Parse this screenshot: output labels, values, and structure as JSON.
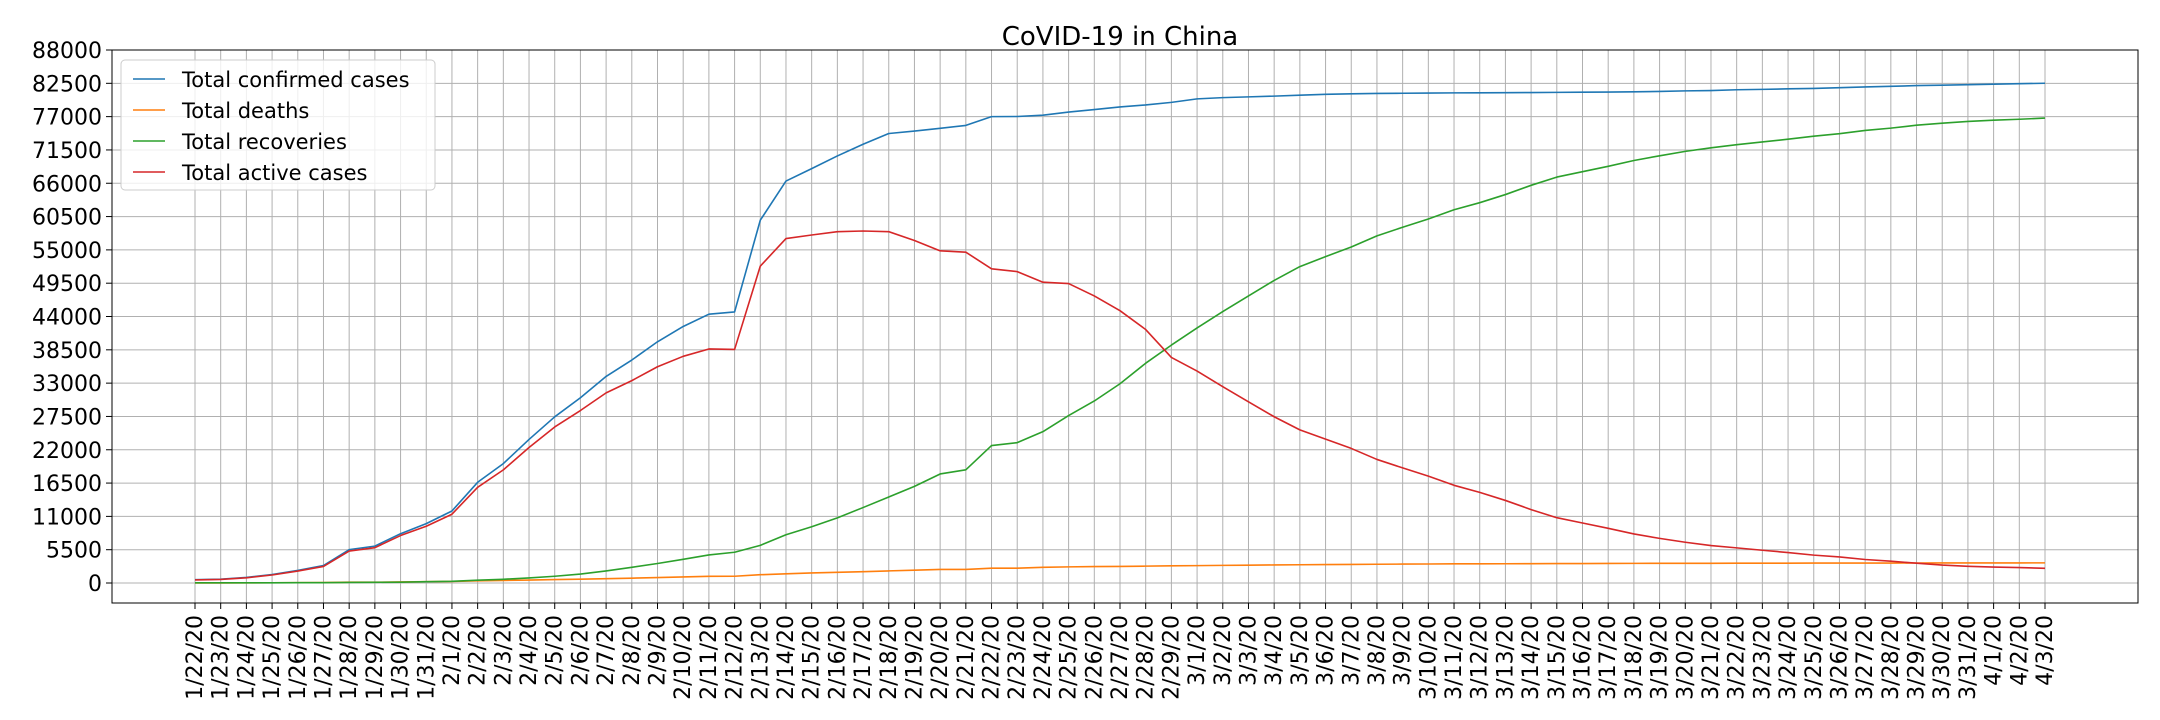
{
  "chart_data": {
    "type": "line",
    "title": "CoVID-19 in China",
    "xlabel": "",
    "ylabel": "",
    "ylim": [
      -3300,
      88000
    ],
    "y_ticks": [
      0,
      5500,
      11000,
      16500,
      22000,
      27500,
      33000,
      38500,
      44000,
      49500,
      55000,
      60500,
      66000,
      71500,
      77000,
      82500,
      88000
    ],
    "grid": true,
    "legend_position": "upper-left",
    "categories": [
      "1/22/20",
      "1/23/20",
      "1/24/20",
      "1/25/20",
      "1/26/20",
      "1/27/20",
      "1/28/20",
      "1/29/20",
      "1/30/20",
      "1/31/20",
      "2/1/20",
      "2/2/20",
      "2/3/20",
      "2/4/20",
      "2/5/20",
      "2/6/20",
      "2/7/20",
      "2/8/20",
      "2/9/20",
      "2/10/20",
      "2/11/20",
      "2/12/20",
      "2/13/20",
      "2/14/20",
      "2/15/20",
      "2/16/20",
      "2/17/20",
      "2/18/20",
      "2/19/20",
      "2/20/20",
      "2/21/20",
      "2/22/20",
      "2/23/20",
      "2/24/20",
      "2/25/20",
      "2/26/20",
      "2/27/20",
      "2/28/20",
      "2/29/20",
      "3/1/20",
      "3/2/20",
      "3/3/20",
      "3/4/20",
      "3/5/20",
      "3/6/20",
      "3/7/20",
      "3/8/20",
      "3/9/20",
      "3/10/20",
      "3/11/20",
      "3/12/20",
      "3/13/20",
      "3/14/20",
      "3/15/20",
      "3/16/20",
      "3/17/20",
      "3/18/20",
      "3/19/20",
      "3/20/20",
      "3/21/20",
      "3/22/20",
      "3/23/20",
      "3/24/20",
      "3/25/20",
      "3/26/20",
      "3/27/20",
      "3/28/20",
      "3/29/20",
      "3/30/20",
      "3/31/20",
      "4/1/20",
      "4/2/20",
      "4/3/20"
    ],
    "series": [
      {
        "name": "Total confirmed cases",
        "color": "#1f77b4",
        "values": [
          548,
          643,
          920,
          1406,
          2075,
          2877,
          5509,
          6087,
          8141,
          9802,
          11891,
          16630,
          19716,
          23707,
          27440,
          30587,
          34110,
          36814,
          39829,
          42354,
          44386,
          44759,
          59895,
          66358,
          68413,
          70513,
          72434,
          74211,
          74619,
          75077,
          75550,
          77001,
          77022,
          77241,
          77754,
          78166,
          78600,
          78928,
          79356,
          79932,
          80136,
          80261,
          80386,
          80537,
          80690,
          80770,
          80823,
          80860,
          80887,
          80921,
          80932,
          80945,
          80977,
          81003,
          81033,
          81058,
          81102,
          81156,
          81250,
          81305,
          81435,
          81498,
          81591,
          81661,
          81782,
          81897,
          81999,
          82122,
          82198,
          82279,
          82361,
          82432,
          82511
        ]
      },
      {
        "name": "Total deaths",
        "color": "#ff7f0e",
        "values": [
          17,
          18,
          26,
          42,
          56,
          82,
          131,
          133,
          171,
          213,
          259,
          361,
          425,
          490,
          562,
          632,
          717,
          804,
          904,
          1011,
          1111,
          1116,
          1368,
          1520,
          1662,
          1765,
          1863,
          2002,
          2114,
          2236,
          2236,
          2441,
          2443,
          2592,
          2663,
          2715,
          2744,
          2788,
          2835,
          2870,
          2912,
          2945,
          2981,
          3013,
          3045,
          3073,
          3099,
          3123,
          3140,
          3162,
          3173,
          3180,
          3194,
          3204,
          3218,
          3231,
          3242,
          3250,
          3253,
          3259,
          3274,
          3274,
          3281,
          3285,
          3291,
          3296,
          3299,
          3304,
          3308,
          3309,
          3316,
          3322,
          3326
        ]
      },
      {
        "name": "Total recoveries",
        "color": "#2ca02c",
        "values": [
          28,
          30,
          36,
          39,
          49,
          58,
          101,
          120,
          135,
          214,
          275,
          463,
          614,
          843,
          1115,
          1476,
          1998,
          2595,
          3218,
          3917,
          4635,
          5079,
          6213,
          7973,
          9294,
          10748,
          12455,
          14199,
          15952,
          18002,
          18693,
          22687,
          23170,
          24990,
          27650,
          30053,
          32898,
          36291,
          39279,
          42118,
          44810,
          47404,
          49955,
          52240,
          53888,
          55478,
          57320,
          58735,
          60099,
          61627,
          62793,
          64133,
          65660,
          67017,
          67910,
          68798,
          69755,
          70535,
          71266,
          71857,
          72362,
          72814,
          73280,
          73773,
          74181,
          74720,
          75100,
          75582,
          75923,
          76206,
          76405,
          76565,
          76760
        ]
      },
      {
        "name": "Total active cases",
        "color": "#d62728",
        "values": [
          503,
          595,
          858,
          1325,
          1970,
          2737,
          5277,
          5834,
          7835,
          9375,
          11357,
          15806,
          18677,
          22374,
          25763,
          28479,
          31395,
          33415,
          35707,
          37426,
          38640,
          38564,
          52314,
          56865,
          57457,
          58000,
          58116,
          58010,
          56553,
          54839,
          54621,
          51873,
          51409,
          49659,
          49441,
          47398,
          44958,
          41849,
          37242,
          34994,
          32414,
          29912,
          27450,
          25284,
          23757,
          22219,
          20404,
          19002,
          17648,
          16132,
          14966,
          13632,
          12123,
          10782,
          9905,
          9029,
          8105,
          7371,
          6731,
          6189,
          5799,
          5410,
          5030,
          4603,
          4310,
          3881,
          3600,
          3268,
          2967,
          2764,
          2640,
          2545,
          2425
        ]
      }
    ]
  }
}
